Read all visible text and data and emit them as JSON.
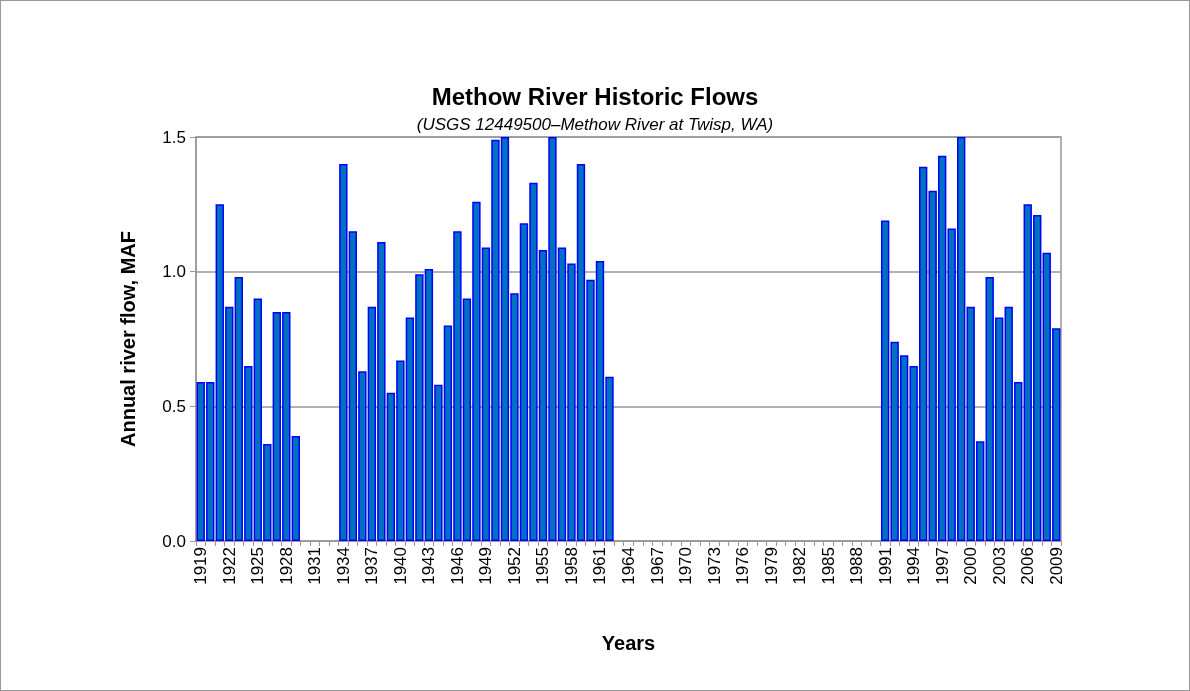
{
  "chart_data": {
    "type": "bar",
    "title": "Methow River Historic Flows",
    "subtitle": "(USGS 12449500–Methow River at Twisp, WA)",
    "xlabel": "Years",
    "ylabel": "Annual river flow, MAF",
    "categories": [
      "1919",
      null,
      null,
      "1922",
      null,
      null,
      "1925",
      null,
      null,
      "1928",
      null,
      null,
      "1931",
      null,
      null,
      "1934",
      null,
      null,
      "1937",
      null,
      null,
      "1940",
      null,
      null,
      "1943",
      null,
      null,
      "1946",
      null,
      null,
      "1949",
      null,
      null,
      "1952",
      null,
      null,
      "1955",
      null,
      null,
      "1958",
      null,
      null,
      "1961",
      null,
      null,
      "1964",
      null,
      null,
      "1967",
      null,
      null,
      "1970",
      null,
      null,
      "1973",
      null,
      null,
      "1976",
      null,
      null,
      "1979",
      null,
      null,
      "1982",
      null,
      null,
      "1985",
      null,
      null,
      "1988",
      null,
      null,
      "1991",
      null,
      null,
      "1994",
      null,
      null,
      "1997",
      null,
      null,
      "2000",
      null,
      null,
      "2003",
      null,
      null,
      "2006",
      null,
      null,
      "2009"
    ],
    "values": [
      0.59,
      0.59,
      1.25,
      0.87,
      0.98,
      0.65,
      0.9,
      0.36,
      0.85,
      0.85,
      0.39,
      null,
      null,
      null,
      null,
      1.4,
      1.15,
      0.63,
      0.87,
      1.11,
      0.55,
      0.67,
      0.83,
      0.99,
      1.01,
      0.58,
      0.8,
      1.15,
      0.9,
      1.26,
      1.09,
      1.49,
      1.5,
      0.92,
      1.18,
      1.33,
      1.08,
      1.5,
      1.09,
      1.03,
      1.4,
      0.97,
      1.04,
      0.61,
      null,
      null,
      null,
      null,
      null,
      null,
      null,
      null,
      null,
      null,
      null,
      null,
      null,
      null,
      null,
      null,
      null,
      null,
      null,
      null,
      null,
      null,
      null,
      null,
      null,
      null,
      null,
      null,
      1.19,
      0.74,
      0.69,
      0.65,
      1.39,
      1.3,
      1.43,
      1.16,
      1.5,
      0.87,
      0.37,
      0.98,
      0.83,
      0.87,
      0.59,
      1.25,
      1.21,
      1.07,
      0.79
    ],
    "color": "#0070c0",
    "ylim": [
      0,
      1.5
    ],
    "yticks": [
      {
        "value": 0,
        "label": "0.0"
      },
      {
        "value": 0.5,
        "label": "0.5"
      },
      {
        "value": 1,
        "label": "1.0"
      },
      {
        "value": 1.5,
        "label": "1.5"
      }
    ],
    "grid": "y"
  }
}
